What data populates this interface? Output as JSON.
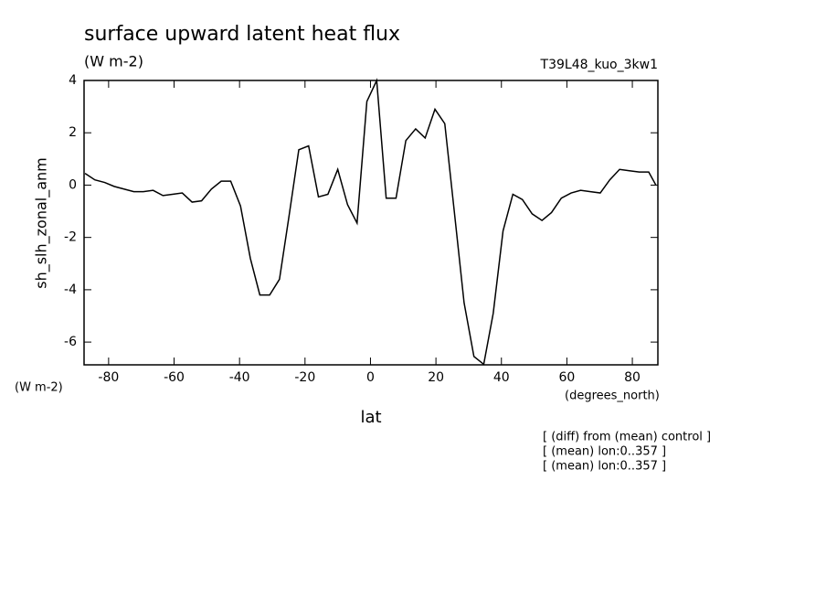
{
  "chart_data": {
    "type": "line",
    "title": "surface upward latent heat flux",
    "units": "(W m-2)",
    "run_label": "T39L48_kuo_3kw1",
    "y_label": "sh_slh_zonal_anm",
    "y_units": "(W m-2)",
    "x_units": "(degrees_north)",
    "x_label": "lat",
    "notes": [
      "[ (diff) from (mean) control ]",
      "[ (mean) lon:0..357 ]",
      "[ (mean) lon:0..357 ]"
    ],
    "color": "#000000",
    "x": [
      -87.2,
      -84.2,
      -81.2,
      -78.3,
      -75.3,
      -72.3,
      -69.4,
      -66.4,
      -63.4,
      -60.5,
      -57.5,
      -54.5,
      -51.6,
      -48.6,
      -45.6,
      -42.7,
      -39.7,
      -36.7,
      -33.8,
      -30.8,
      -27.8,
      -24.9,
      -21.9,
      -18.9,
      -15.9,
      -13.0,
      -10.0,
      -7.0,
      -4.1,
      -1.1,
      1.9,
      4.8,
      7.8,
      10.8,
      13.8,
      16.7,
      19.7,
      22.7,
      25.6,
      28.6,
      31.6,
      34.6,
      37.5,
      40.5,
      43.5,
      46.4,
      49.4,
      52.4,
      55.3,
      58.3,
      61.3,
      64.2,
      67.2,
      70.2,
      73.1,
      76.1,
      79.1,
      82.1,
      85.0,
      87.2
    ],
    "values": [
      0.45,
      0.2,
      0.1,
      -0.05,
      -0.15,
      -0.25,
      -0.25,
      -0.2,
      -0.4,
      -0.35,
      -0.3,
      -0.65,
      -0.6,
      -0.15,
      0.15,
      0.15,
      -0.8,
      -2.8,
      -4.2,
      -4.2,
      -3.6,
      -1.2,
      1.35,
      1.5,
      -0.45,
      -0.35,
      0.6,
      -0.75,
      -1.45,
      3.2,
      4.0,
      -0.5,
      -0.5,
      1.7,
      2.15,
      1.8,
      2.9,
      2.35,
      -1.0,
      -4.5,
      -6.55,
      -6.85,
      -4.9,
      -1.75,
      -0.35,
      -0.55,
      -1.1,
      -1.35,
      -1.05,
      -0.5,
      -0.3,
      -0.2,
      -0.25,
      -0.3,
      0.2,
      0.6,
      0.55,
      0.5,
      0.5,
      0.0
    ],
    "xlim": [
      -87.5,
      87.8
    ],
    "ylim": [
      -6.87,
      4.0
    ],
    "xticks": [
      -80,
      -60,
      -40,
      -20,
      0,
      20,
      40,
      60,
      80
    ],
    "yticks": [
      -6,
      -4,
      -2,
      0,
      2,
      4
    ]
  }
}
